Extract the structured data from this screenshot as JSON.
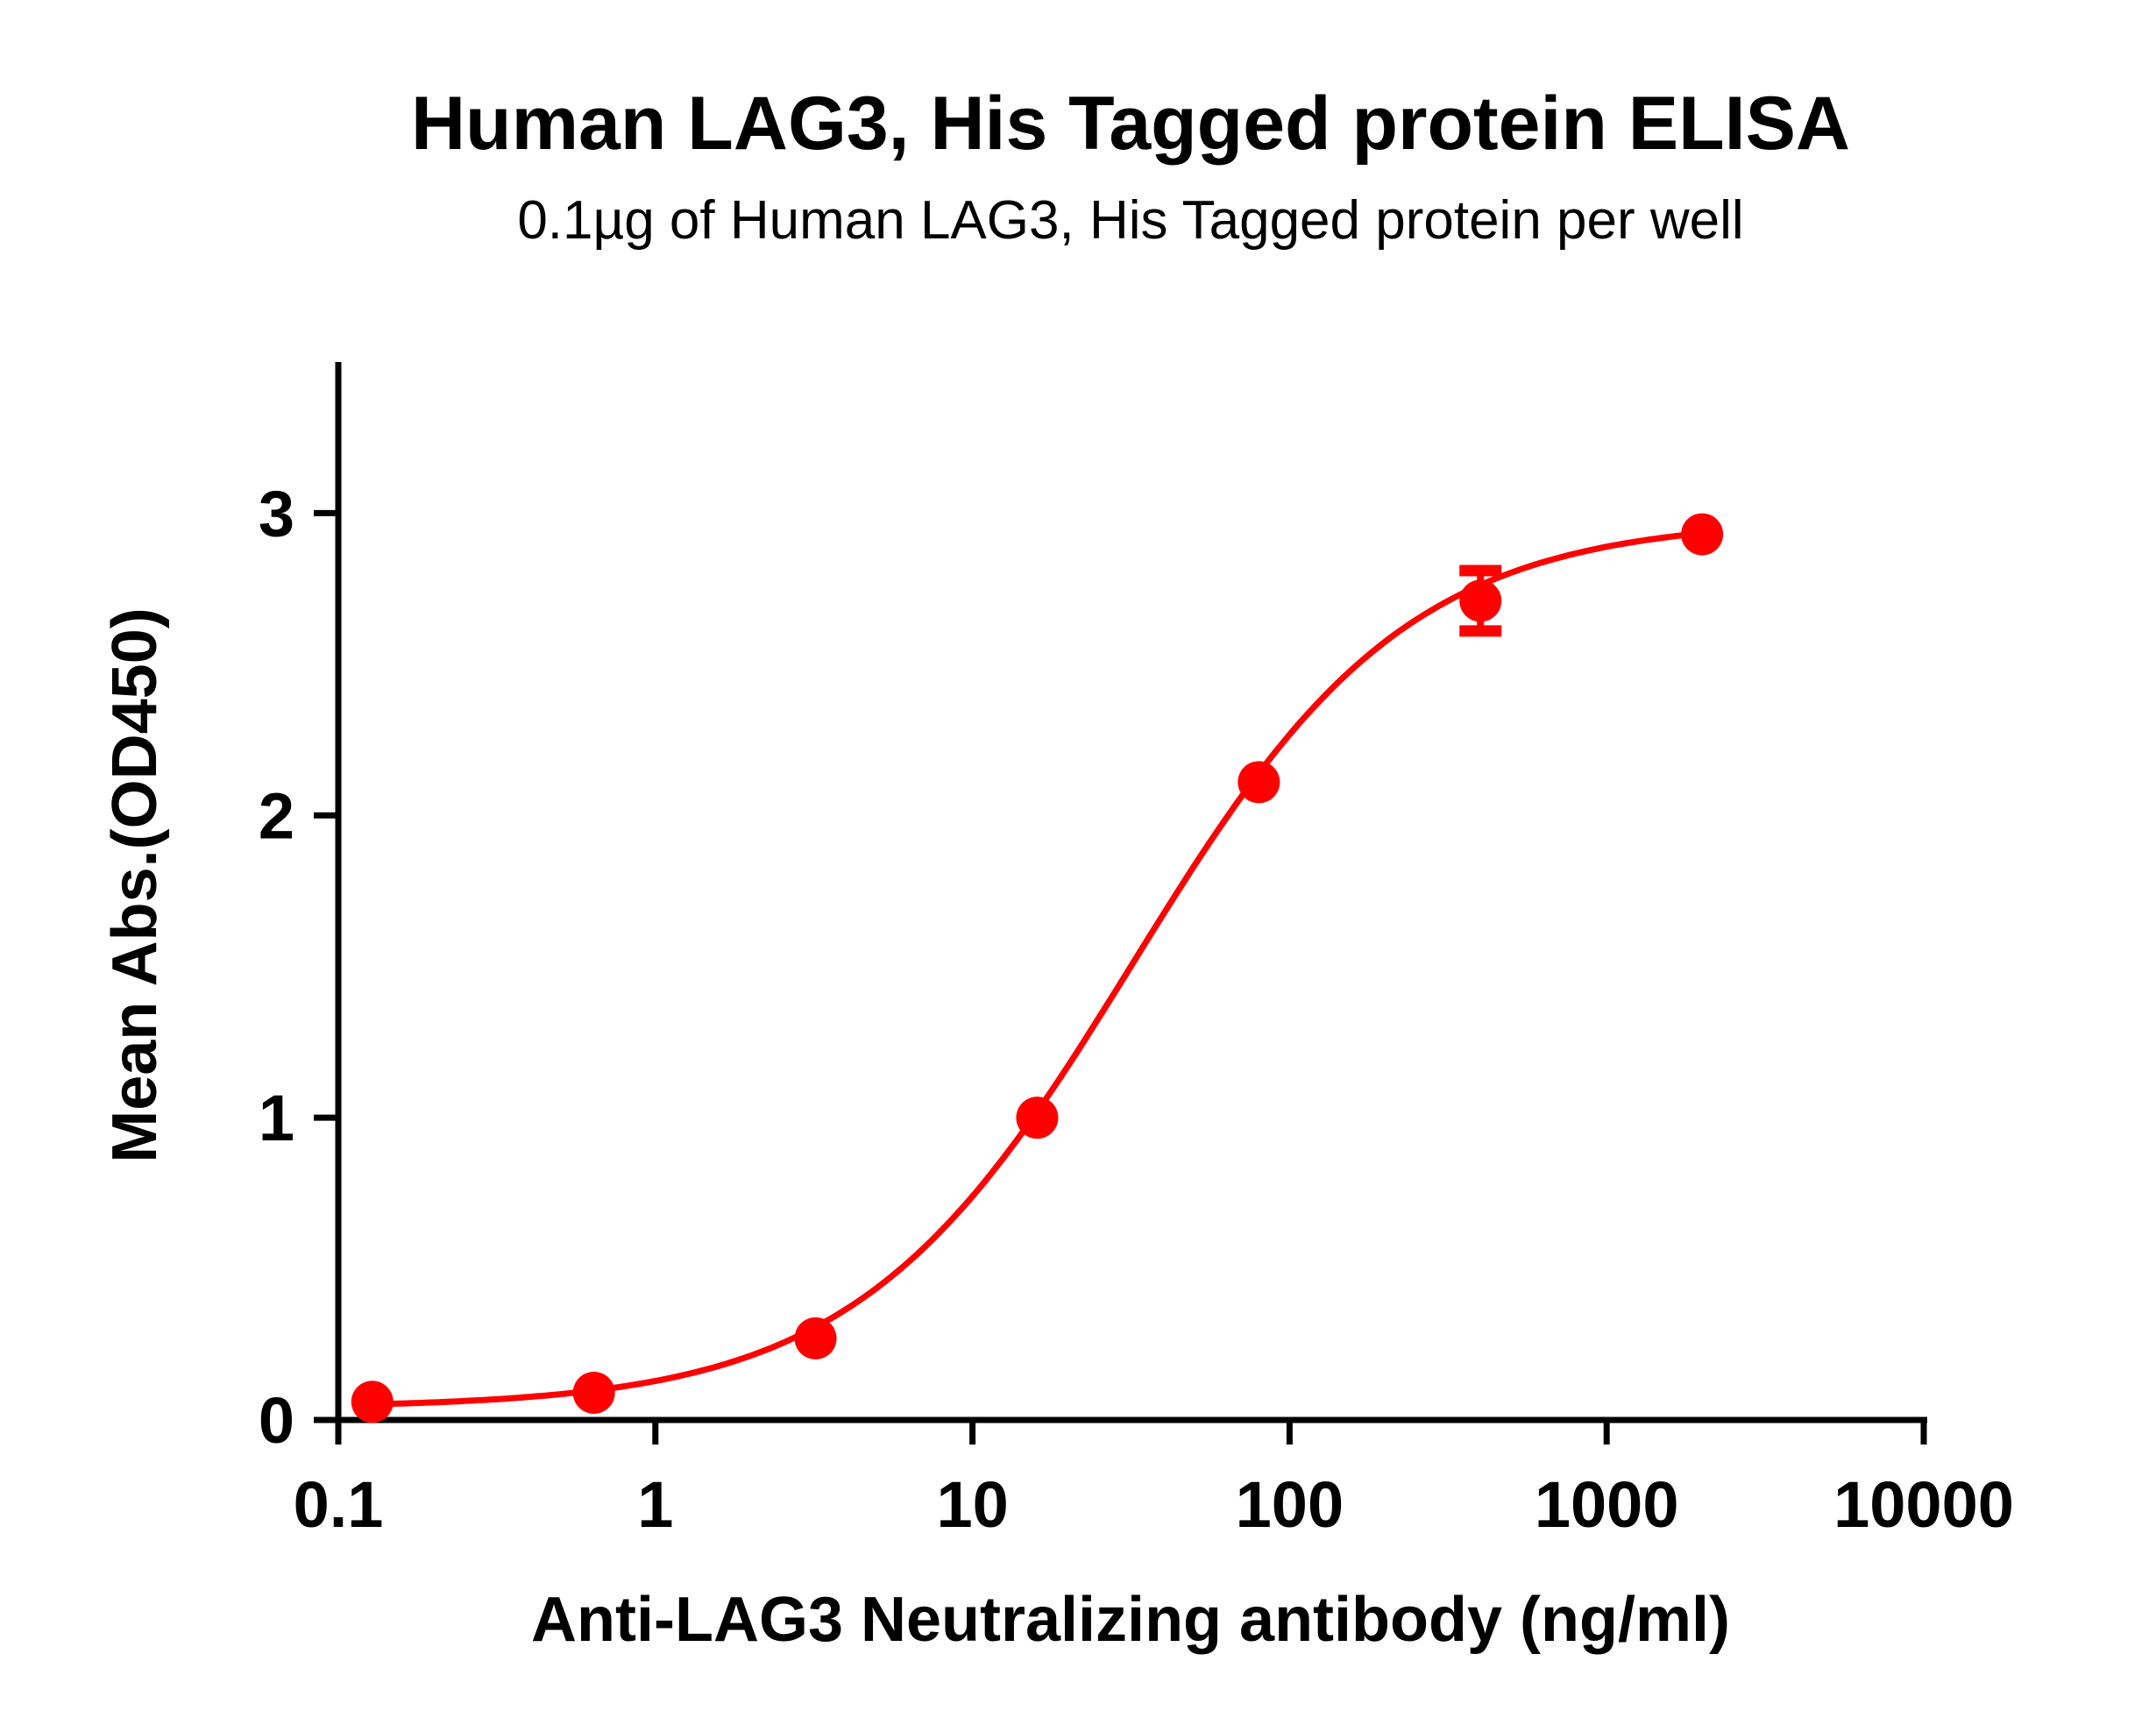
{
  "chart_data": {
    "type": "scatter",
    "title": "Human LAG3, His Tagged protein ELISA",
    "subtitle": "0.1µg of Human LAG3, His Tagged protein per well",
    "xlabel": "Anti-LAG3 Neutralizing antibody (ng/ml)",
    "ylabel": "Mean Abs.(OD450)",
    "xscale": "log",
    "xlim": [
      0.1,
      10000
    ],
    "ylim": [
      0,
      3.5
    ],
    "xticks": [
      "0.1",
      "1",
      "10",
      "100",
      "1000",
      "10000"
    ],
    "yticks": [
      "0",
      "1",
      "2",
      "3"
    ],
    "grid": false,
    "color": "#ff0000",
    "series": [
      {
        "x": [
          0.128,
          0.64,
          3.2,
          16,
          80,
          400,
          2000
        ],
        "y": [
          0.06,
          0.09,
          0.27,
          1.0,
          2.11,
          2.71,
          2.93
        ],
        "error": [
          0,
          0,
          0,
          0,
          0,
          0.1,
          0
        ]
      }
    ],
    "fit": {
      "model": "4PL",
      "bottom": 0.04,
      "top": 2.98,
      "ec50": 32,
      "hill": 1.0
    }
  }
}
